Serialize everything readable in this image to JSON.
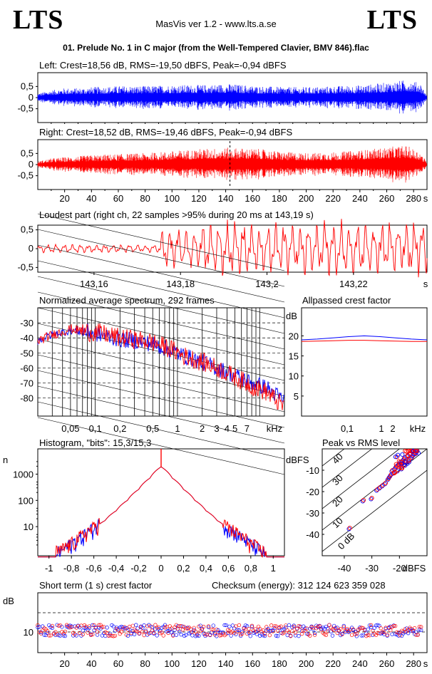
{
  "header": {
    "logo_left": "LTS",
    "logo_right": "LTS",
    "app_title": "MasVis ver 1.2 - www.lts.a.se",
    "file_title": "01. Prelude No. 1 in C major (from the Well-Tempered Clavier, BMV 846).flac"
  },
  "colors": {
    "left": "#0000ff",
    "right": "#ff0000",
    "grid": "#000000"
  },
  "chart_data": [
    {
      "id": "left",
      "type": "line",
      "title": "Left: Crest=18,56 dB, RMS=-19,50 dBFS, Peak=-0,94 dBFS",
      "y_ticks": [
        "0,5",
        "0",
        "-0,5"
      ],
      "ylim": [
        -1,
        1
      ],
      "envelope_x_s": [
        0,
        10,
        20,
        30,
        40,
        60,
        80,
        100,
        120,
        140,
        160,
        180,
        200,
        220,
        240,
        260,
        270,
        280,
        285
      ],
      "envelope_peak": [
        0.2,
        0.35,
        0.45,
        0.45,
        0.5,
        0.55,
        0.55,
        0.6,
        0.6,
        0.65,
        0.55,
        0.5,
        0.5,
        0.55,
        0.6,
        0.75,
        0.85,
        0.7,
        0.1
      ]
    },
    {
      "id": "right",
      "type": "line",
      "title": "Right: Crest=18,52 dB, RMS=-19,46 dBFS, Peak=-0,94 dBFS",
      "y_ticks": [
        "0,5",
        "0",
        "-0,5"
      ],
      "ylim": [
        -1,
        1
      ],
      "envelope_x_s": [
        0,
        10,
        20,
        30,
        40,
        60,
        80,
        100,
        120,
        140,
        160,
        180,
        200,
        220,
        240,
        260,
        270,
        280,
        285
      ],
      "envelope_peak": [
        0.15,
        0.3,
        0.35,
        0.4,
        0.45,
        0.5,
        0.55,
        0.65,
        0.75,
        0.8,
        0.75,
        0.6,
        0.55,
        0.6,
        0.7,
        0.85,
        0.9,
        0.6,
        0.1
      ],
      "x_ticks": [
        "20",
        "40",
        "60",
        "80",
        "100",
        "120",
        "140",
        "160",
        "180",
        "200",
        "220",
        "240",
        "260",
        "280"
      ],
      "x_unit": "s"
    },
    {
      "id": "loudest",
      "type": "line",
      "title": "Loudest part (right ch, 22 samples >95% during 20 ms at 143,19 s)",
      "y_ticks": [
        "0,5",
        "0",
        "-0,5"
      ],
      "x_ticks": [
        "143,16",
        "143,18",
        "143,2",
        "143,22"
      ],
      "x_unit": "s",
      "xlim": [
        143.147,
        143.237
      ]
    },
    {
      "id": "spectrum",
      "type": "line",
      "title": "Normalized average spectrum, 292 frames",
      "ylabel": "dB",
      "y_ticks": [
        "-30",
        "-40",
        "-50",
        "-60",
        "-70",
        "-80"
      ],
      "x_ticks": [
        "0,05",
        "0,1",
        "0,2",
        "0,5",
        "1",
        "2",
        "3",
        "4",
        "5",
        "7"
      ],
      "x_unit": "kHz",
      "xlim_khz": [
        0.02,
        20
      ],
      "ylim_db": [
        -92,
        -20
      ],
      "freq_khz": [
        0.02,
        0.03,
        0.05,
        0.08,
        0.12,
        0.2,
        0.3,
        0.5,
        0.8,
        1.2,
        2,
        3,
        5,
        8,
        12,
        20
      ],
      "left_db": [
        -42,
        -38,
        -35,
        -36,
        -38,
        -41,
        -42,
        -44,
        -48,
        -52,
        -56,
        -60,
        -65,
        -70,
        -73,
        -82
      ],
      "right_db": [
        -42,
        -38,
        -34,
        -36,
        -37,
        -40,
        -41,
        -43,
        -47,
        -52,
        -56,
        -60,
        -66,
        -72,
        -76,
        -86
      ]
    },
    {
      "id": "allpassed",
      "type": "line",
      "title": "Allpassed crest factor",
      "ylabel": "dB",
      "y_ticks": [
        "20",
        "15",
        "10",
        "5"
      ],
      "x_ticks": [
        "0,1",
        "1",
        "2",
        "kHz"
      ],
      "ylim": [
        0,
        27
      ],
      "left_db": [
        19,
        19.2,
        19.5,
        19.8,
        20,
        19.8,
        19.5,
        19.2,
        19
      ],
      "right_db": [
        18.6,
        18.7,
        18.8,
        18.9,
        18.9,
        18.8,
        18.7,
        18.6,
        18.6
      ]
    },
    {
      "id": "histogram",
      "type": "line",
      "title": "Histogram, \"bits\": 15,3/15,3",
      "ylabel": "n",
      "y_ticks": [
        "1000",
        "100",
        "10"
      ],
      "x_ticks": [
        "-1",
        "-0,8",
        "-0,6",
        "-0,4",
        "-0,2",
        "0",
        "0,2",
        "0,4",
        "0,6",
        "0,8",
        "1"
      ],
      "xlim": [
        -1.1,
        1.1
      ],
      "x": [
        -0.94,
        -0.9,
        -0.8,
        -0.7,
        -0.6,
        -0.5,
        -0.4,
        -0.3,
        -0.2,
        -0.1,
        0,
        0.1,
        0.2,
        0.3,
        0.4,
        0.5,
        0.6,
        0.7,
        0.8,
        0.9,
        0.94
      ],
      "counts": [
        1,
        1,
        2,
        4,
        8,
        17,
        40,
        100,
        260,
        700,
        1900,
        700,
        260,
        100,
        40,
        17,
        8,
        4,
        2,
        1,
        1
      ]
    },
    {
      "id": "peak_vs_rms",
      "type": "scatter",
      "title": "Peak vs RMS level",
      "ylabel": "dBFS",
      "xlabel": "dBFS",
      "y_ticks": [
        "-10",
        "-20",
        "-30",
        "-40"
      ],
      "x_ticks": [
        "-40",
        "-30",
        "-20"
      ],
      "diag_labels": [
        "40",
        "30",
        "20",
        "10",
        "0 dB"
      ],
      "xlim": [
        -48,
        -10
      ],
      "ylim": [
        -50,
        0
      ],
      "rms": [
        -38,
        -33,
        -30,
        -28,
        -27,
        -26,
        -25,
        -24,
        -23.5,
        -23,
        -22.5,
        -22,
        -21.5,
        -21,
        -20.5,
        -20,
        -19.5,
        -19,
        -18.5,
        -18,
        -17.5,
        -17,
        -16.5,
        -16,
        -15.5,
        -15,
        -14.5,
        -14,
        -13.5
      ],
      "peak": [
        -37,
        -24,
        -23,
        -19,
        -18,
        -17,
        -16,
        -14,
        -13,
        -12,
        -10,
        -11,
        -9,
        -8,
        -10,
        -7,
        -6,
        -9,
        -5,
        -4,
        -6,
        -3,
        -5,
        -2,
        -4,
        -3,
        -2,
        -2,
        -1
      ]
    },
    {
      "id": "short_term_crest",
      "type": "scatter",
      "title": "Short term (1 s) crest factor",
      "ylabel": "dB",
      "y_ticks": [
        "10"
      ],
      "x_ticks": [
        "20",
        "40",
        "60",
        "80",
        "100",
        "120",
        "140",
        "160",
        "180",
        "200",
        "220",
        "240",
        "260",
        "280"
      ],
      "x_unit": "s",
      "checksum": "Checksum (energy):   312 124 623 359 028"
    }
  ]
}
